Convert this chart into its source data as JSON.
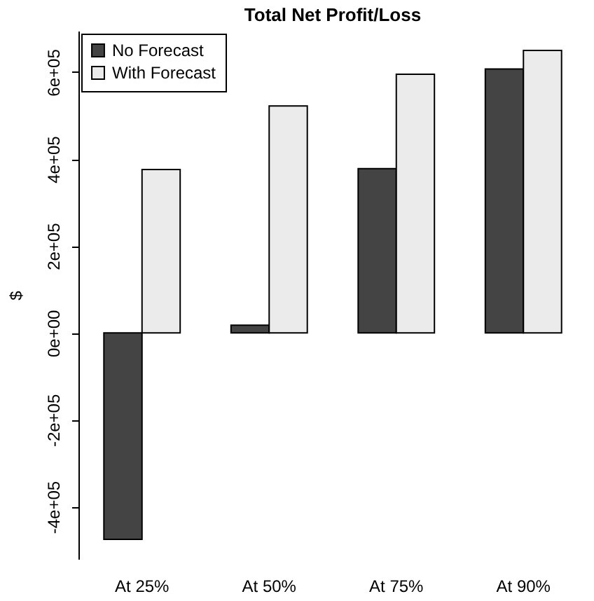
{
  "chart_data": {
    "type": "bar",
    "title": "Total Net Profit/Loss",
    "ylabel": "$",
    "categories": [
      "At 25%",
      "At 50%",
      "At 75%",
      "At 90%"
    ],
    "series": [
      {
        "name": "No Forecast",
        "color": "#444444",
        "values": [
          -475000,
          18000,
          378000,
          607000
        ]
      },
      {
        "name": "With Forecast",
        "color": "#ebebeb",
        "values": [
          376000,
          522000,
          595000,
          650000
        ]
      }
    ],
    "ylim": [
      -520000,
      695000
    ],
    "yticks": [
      {
        "value": -400000,
        "label": "-4e+05"
      },
      {
        "value": -200000,
        "label": "-2e+05"
      },
      {
        "value": 0,
        "label": "0e+00"
      },
      {
        "value": 200000,
        "label": "2e+05"
      },
      {
        "value": 400000,
        "label": "4e+05"
      },
      {
        "value": 600000,
        "label": "6e+05"
      }
    ],
    "grid": false,
    "legend": "top left"
  }
}
